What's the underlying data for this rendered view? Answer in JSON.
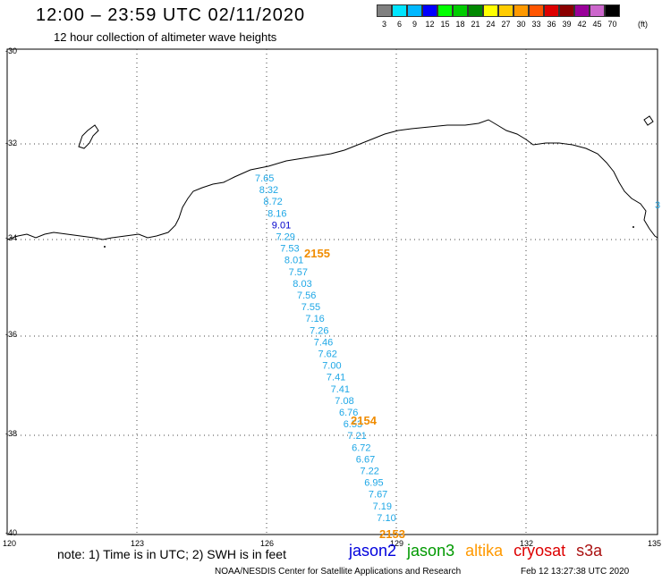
{
  "header": {
    "title": "12:00 – 23:59 UTC 02/11/2020",
    "subtitle": "12 hour collection of altimeter wave heights"
  },
  "legend": {
    "colors": [
      "#808080",
      "#00e5ff",
      "#00b8ff",
      "#0000ff",
      "#00ff00",
      "#00cc00",
      "#008800",
      "#ffff00",
      "#ffcc00",
      "#ff9900",
      "#ff5500",
      "#dd0000",
      "#8b0000",
      "#990099",
      "#cc66cc",
      "#000000"
    ],
    "labels": [
      "3",
      "6",
      "9",
      "12",
      "15",
      "18",
      "21",
      "24",
      "27",
      "30",
      "33",
      "36",
      "39",
      "42",
      "45",
      "70"
    ],
    "unit": "(ft)"
  },
  "axes": {
    "lat_labels": [
      "-30",
      "-32",
      "-34",
      "-36",
      "-38",
      "-40"
    ],
    "lon_labels": [
      "120",
      "123",
      "126",
      "129",
      "132",
      "135"
    ]
  },
  "track": {
    "heights": [
      "7.65",
      "8.32",
      "8.72",
      "8.16",
      "9.01",
      "7.29",
      "7.53",
      "8.01",
      "7.57",
      "8.03",
      "7.56",
      "7.55",
      "7.16",
      "7.26",
      "7.46",
      "7.62",
      "7.00",
      "7.41",
      "7.41",
      "7.08",
      "6.76",
      "6.53",
      "7.21",
      "6.72",
      "6.67",
      "7.22",
      "6.95",
      "7.67",
      "7.19",
      "7.10"
    ],
    "time_labels": [
      "2155",
      "2154",
      "2153"
    ],
    "edge_label": "3"
  },
  "footer": {
    "note": "note: 1) Time is in UTC; 2) SWH is in feet",
    "satellites": [
      "jason2",
      "jason3",
      "altika",
      "cryosat",
      "s3a"
    ],
    "credit": "NOAA/NESDIS Center for Satellite Applications and Research",
    "timestamp": "Feb 12 13:27:38 UTC 2020"
  }
}
